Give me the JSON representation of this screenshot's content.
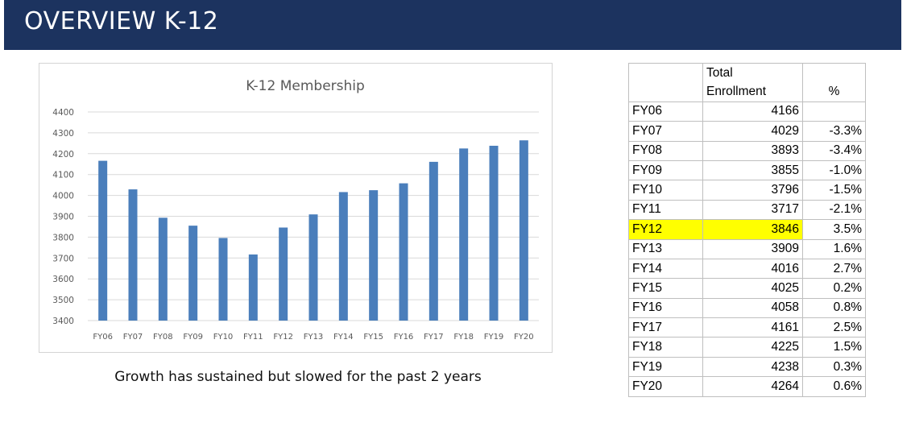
{
  "header": {
    "title": "OVERVIEW K-12"
  },
  "caption": "Growth has sustained but slowed for the past 2 years",
  "colors": {
    "header_bg": "#1c335f",
    "bar": "#4a7ebb",
    "highlight": "#ffff00"
  },
  "chart_data": {
    "type": "bar",
    "title": "K-12 Membership",
    "xlabel": "",
    "ylabel": "",
    "categories": [
      "FY06",
      "FY07",
      "FY08",
      "FY09",
      "FY10",
      "FY11",
      "FY12",
      "FY13",
      "FY14",
      "FY15",
      "FY16",
      "FY17",
      "FY18",
      "FY19",
      "FY20"
    ],
    "values": [
      4166,
      4029,
      3893,
      3855,
      3796,
      3717,
      3846,
      3909,
      4016,
      4025,
      4058,
      4161,
      4225,
      4238,
      4264
    ],
    "ylim": [
      3400,
      4400
    ],
    "yticks": [
      "4400",
      "4300",
      "4200",
      "4100",
      "4000",
      "3900",
      "3800",
      "3700",
      "3600",
      "3500",
      "3400"
    ],
    "grid": true
  },
  "table": {
    "header": {
      "col1_line1": "Total",
      "col1_line2": "Enrollment",
      "col2": "%"
    },
    "rows": [
      {
        "year": "FY06",
        "enrollment": "4166",
        "pct": ""
      },
      {
        "year": "FY07",
        "enrollment": "4029",
        "pct": "-3.3%"
      },
      {
        "year": "FY08",
        "enrollment": "3893",
        "pct": "-3.4%"
      },
      {
        "year": "FY09",
        "enrollment": "3855",
        "pct": "-1.0%"
      },
      {
        "year": "FY10",
        "enrollment": "3796",
        "pct": "-1.5%"
      },
      {
        "year": "FY11",
        "enrollment": "3717",
        "pct": "-2.1%"
      },
      {
        "year": "FY12",
        "enrollment": "3846",
        "pct": "3.5%"
      },
      {
        "year": "FY13",
        "enrollment": "3909",
        "pct": "1.6%"
      },
      {
        "year": "FY14",
        "enrollment": "4016",
        "pct": "2.7%"
      },
      {
        "year": "FY15",
        "enrollment": "4025",
        "pct": "0.2%"
      },
      {
        "year": "FY16",
        "enrollment": "4058",
        "pct": "0.8%"
      },
      {
        "year": "FY17",
        "enrollment": "4161",
        "pct": "2.5%"
      },
      {
        "year": "FY18",
        "enrollment": "4225",
        "pct": "1.5%"
      },
      {
        "year": "FY19",
        "enrollment": "4238",
        "pct": "0.3%"
      },
      {
        "year": "FY20",
        "enrollment": "4264",
        "pct": "0.6%"
      }
    ],
    "highlighted_row": "FY12"
  }
}
